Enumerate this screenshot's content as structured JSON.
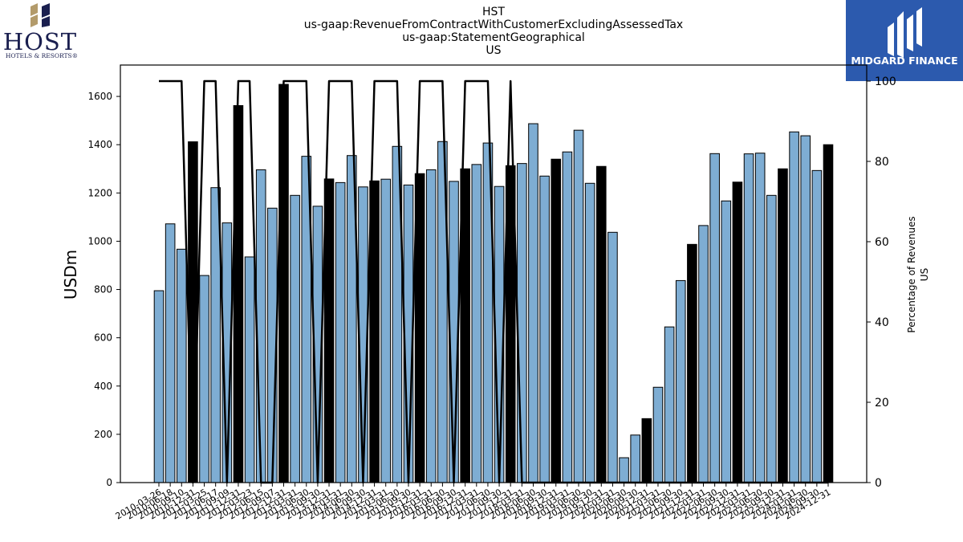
{
  "logos": {
    "host": {
      "wordmark": "HOST",
      "tagline": "HOTELS & RESORTS®"
    },
    "midgard": {
      "name": "MIDGARD FINANCE",
      "background": "#2c5aae"
    }
  },
  "chart_data": {
    "type": "bar",
    "title_lines": [
      "HST",
      "us-gaap:RevenueFromContractWithCustomerExcludingAssessedTax",
      "us-gaap:StatementGeographical",
      "US"
    ],
    "ylabel": "USDm",
    "y2label_lines": [
      "Percentage of Revenues",
      "US"
    ],
    "ylim": [
      0,
      1730
    ],
    "y2lim": [
      0,
      104
    ],
    "y_ticks": [
      0,
      200,
      400,
      600,
      800,
      1000,
      1200,
      1400,
      1600
    ],
    "y2_ticks": [
      0,
      20,
      40,
      60,
      80,
      100
    ],
    "colors": {
      "bar_light": "#7eadd3",
      "bar_dark": "#000000",
      "line": "#000000"
    },
    "x_labels": [
      "2010-03-26",
      "2010-06-18",
      "2010-09-10",
      "2010-12-31",
      "2011-03-25",
      "2011-06-17",
      "2011-09-09",
      "2011-12-31",
      "2012-03-23",
      "2012-06-15",
      "2012-09-07",
      "2012-12-31",
      "2013-03-31",
      "2013-06-30",
      "2013-09-30",
      "2013-12-31",
      "2014-03-31",
      "2014-06-30",
      "2014-09-30",
      "2014-12-31",
      "2015-03-31",
      "2015-06-30",
      "2015-09-30",
      "2015-12-31",
      "2016-03-31",
      "2016-06-30",
      "2016-09-30",
      "2016-12-31",
      "2017-03-31",
      "2017-06-30",
      "2017-09-30",
      "2017-12-31",
      "2018-03-31",
      "2018-06-30",
      "2018-09-30",
      "2018-12-31",
      "2019-03-31",
      "2019-06-30",
      "2019-09-30",
      "2019-12-31",
      "2020-03-31",
      "2020-06-30",
      "2020-09-30",
      "2020-12-31",
      "2021-03-31",
      "2021-06-30",
      "2021-09-30",
      "2021-12-31",
      "2022-03-31",
      "2022-06-30",
      "2022-09-30",
      "2022-12-31",
      "2023-03-31",
      "2023-06-30",
      "2023-09-30",
      "2023-12-31",
      "2024-03-31",
      "2024-06-30",
      "2024-09-30",
      "2024-12-31"
    ],
    "series": [
      {
        "values": [
          795,
          1072,
          967,
          1412,
          858,
          1222,
          1076,
          1562,
          935,
          1296,
          1137,
          1650,
          1190,
          1352,
          1145,
          1258,
          1243,
          1355,
          1225,
          1250,
          1257,
          1393,
          1233,
          1280,
          1296,
          1413,
          1248,
          1300,
          1318,
          1407,
          1227,
          1313,
          1322,
          1487,
          1270,
          1340,
          1370,
          1460,
          1240,
          1310,
          1037,
          103,
          197,
          265,
          395,
          645,
          837,
          987,
          1065,
          1363,
          1167,
          1245,
          1362,
          1365,
          1190,
          1300,
          1453,
          1437,
          1293,
          1400
        ],
        "dark": [
          0,
          0,
          0,
          1,
          0,
          0,
          0,
          1,
          0,
          0,
          0,
          1,
          0,
          0,
          0,
          1,
          0,
          0,
          0,
          1,
          0,
          0,
          0,
          1,
          0,
          0,
          0,
          1,
          0,
          0,
          0,
          1,
          0,
          0,
          0,
          1,
          0,
          0,
          0,
          1,
          0,
          0,
          0,
          1,
          0,
          0,
          0,
          1,
          0,
          0,
          0,
          1,
          0,
          0,
          0,
          1,
          0,
          0,
          0,
          1
        ]
      },
      {
        "type": "line",
        "values": [
          100,
          100,
          100,
          0,
          100,
          100,
          0,
          100,
          100,
          0,
          0,
          100,
          100,
          100,
          0,
          100,
          100,
          100,
          0,
          100,
          100,
          100,
          0,
          100,
          100,
          100,
          0,
          100,
          100,
          100,
          0,
          100,
          0,
          0,
          0,
          0,
          0,
          0,
          0,
          0,
          0,
          0,
          0,
          0,
          0,
          0,
          0,
          0,
          0,
          0,
          0,
          0,
          0,
          0,
          0,
          0,
          0,
          0,
          0,
          0
        ]
      }
    ]
  }
}
